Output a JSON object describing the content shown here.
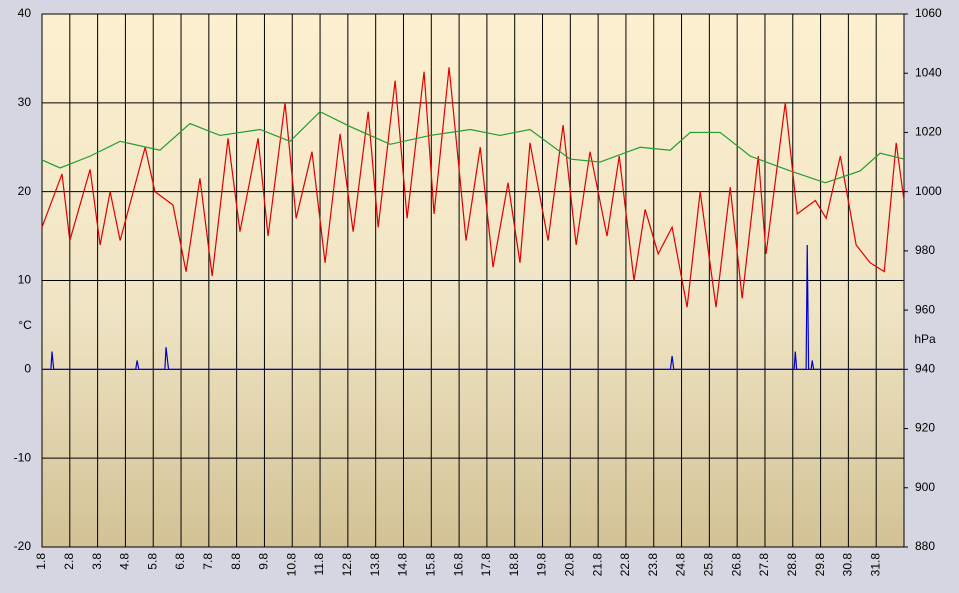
{
  "chart_data": {
    "type": "line",
    "y_label": "°C",
    "y2_label": "hPa",
    "xlim": [
      1,
      32
    ],
    "xticks": [
      {
        "value": 1,
        "label": "1.8"
      },
      {
        "value": 2,
        "label": "2.8"
      },
      {
        "value": 3,
        "label": "3.8"
      },
      {
        "value": 4,
        "label": "4.8"
      },
      {
        "value": 5,
        "label": "5.8"
      },
      {
        "value": 6,
        "label": "6.8"
      },
      {
        "value": 7,
        "label": "7.8"
      },
      {
        "value": 8,
        "label": "8.8"
      },
      {
        "value": 9,
        "label": "9.8"
      },
      {
        "value": 10,
        "label": "10.8"
      },
      {
        "value": 11,
        "label": "11.8"
      },
      {
        "value": 12,
        "label": "12.8"
      },
      {
        "value": 13,
        "label": "13.8"
      },
      {
        "value": 14,
        "label": "14.8"
      },
      {
        "value": 15,
        "label": "15.8"
      },
      {
        "value": 16,
        "label": "16.8"
      },
      {
        "value": 17,
        "label": "17.8"
      },
      {
        "value": 18,
        "label": "18.8"
      },
      {
        "value": 19,
        "label": "19.8"
      },
      {
        "value": 20,
        "label": "20.8"
      },
      {
        "value": 21,
        "label": "21.8"
      },
      {
        "value": 22,
        "label": "22.8"
      },
      {
        "value": 23,
        "label": "23.8"
      },
      {
        "value": 24,
        "label": "24.8"
      },
      {
        "value": 25,
        "label": "25.8"
      },
      {
        "value": 26,
        "label": "26.8"
      },
      {
        "value": 27,
        "label": "27.8"
      },
      {
        "value": 28,
        "label": "28.8"
      },
      {
        "value": 29,
        "label": "29.8"
      },
      {
        "value": 30,
        "label": "30.8"
      },
      {
        "value": 31,
        "label": "31.8"
      }
    ],
    "ylim": [
      -20,
      40
    ],
    "yticks": [
      -20,
      -10,
      0,
      10,
      20,
      30,
      40
    ],
    "y2lim": [
      880,
      1060
    ],
    "y2ticks": [
      880,
      900,
      920,
      940,
      960,
      980,
      1000,
      1020,
      1040,
      1060
    ],
    "grid": true,
    "series": [
      {
        "color": "#e00000",
        "x": [
          1,
          1.72,
          2,
          2.73,
          3.09,
          3.45,
          3.81,
          4.71,
          5.06,
          5.71,
          6.18,
          6.68,
          7.12,
          7.69,
          8.12,
          8.77,
          9.13,
          9.74,
          10.14,
          10.71,
          11.18,
          11.72,
          12.19,
          12.73,
          13.09,
          13.7,
          14.13,
          14.74,
          15.1,
          15.64,
          16.25,
          16.76,
          17.22,
          17.76,
          18.19,
          18.55,
          19.2,
          19.74,
          20.21,
          20.71,
          21.32,
          21.76,
          22.29,
          22.69,
          23.16,
          23.66,
          24.2,
          24.67,
          25.24,
          25.75,
          26.18,
          26.76,
          27.04,
          27.73,
          28.16,
          28.81,
          29.2,
          29.71,
          30.28,
          30.78,
          31.29,
          31.72,
          32
        ],
        "values": [
          16,
          22,
          14.5,
          22.5,
          14,
          20,
          14.5,
          25,
          20,
          18.5,
          11,
          21.5,
          10.5,
          26,
          15.5,
          26,
          15,
          30,
          17,
          24.5,
          12,
          26.5,
          15.5,
          29,
          16,
          32.5,
          17,
          33.5,
          17.5,
          34,
          14.5,
          25,
          11.5,
          21,
          12,
          25.5,
          14.5,
          27.5,
          14,
          24.5,
          15,
          24,
          10,
          18,
          13,
          16,
          7,
          20,
          7,
          20.5,
          8,
          24,
          13,
          30,
          17.5,
          19,
          17,
          24,
          14,
          12,
          11,
          25.5,
          19
        ]
      },
      {
        "color": "#1e9e2e",
        "axis": "y2",
        "x": [
          1,
          1.65,
          2.73,
          3.81,
          5.24,
          6.32,
          7.4,
          8.84,
          9.92,
          11,
          12.08,
          13.52,
          14.96,
          16.4,
          17.47,
          18.55,
          19.99,
          21.07,
          22.51,
          23.59,
          24.31,
          25.39,
          26.47,
          27.91,
          29.17,
          30.42,
          31.14,
          32
        ],
        "values": [
          1010.7,
          1008,
          1012,
          1017,
          1014,
          1023,
          1019,
          1021,
          1017,
          1027,
          1022,
          1016,
          1019,
          1021,
          1019,
          1021,
          1011,
          1010,
          1015,
          1014,
          1020,
          1020,
          1012,
          1007,
          1003,
          1007,
          1013,
          1011
        ]
      },
      {
        "color": "#0000d0",
        "x": [
          1,
          1.32,
          1.36,
          1.42,
          4.37,
          4.42,
          4.48,
          5.42,
          5.46,
          5.55,
          23.6,
          23.66,
          23.72,
          28.05,
          28.09,
          28.14,
          28.48,
          28.52,
          28.57,
          28.66,
          28.7,
          28.75,
          32
        ],
        "values": [
          0,
          0,
          2,
          0,
          0,
          1,
          0,
          0,
          2.5,
          0,
          0,
          1.5,
          0,
          0,
          2,
          0,
          0,
          14,
          0,
          0,
          1,
          0,
          0
        ]
      }
    ]
  }
}
